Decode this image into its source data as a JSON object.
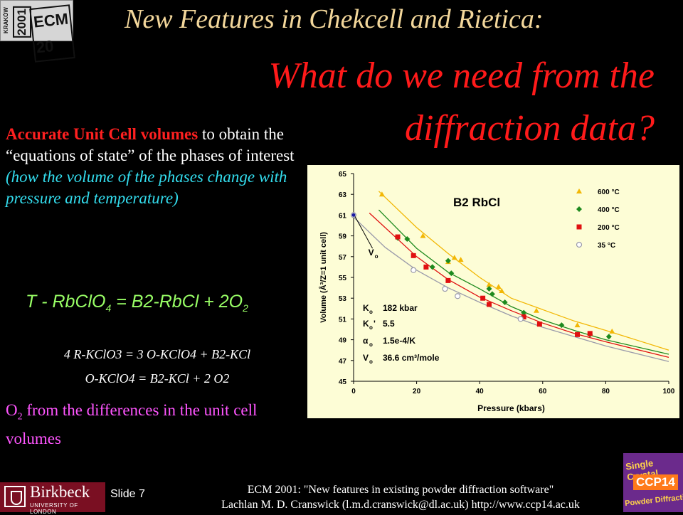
{
  "logo": {
    "city": "KRAKÓW",
    "year": "2001",
    "text": "ECM 20"
  },
  "title": {
    "line1": "New Features in Chekcell and Rietica:",
    "line2": "What do we need from the diffraction data?"
  },
  "body": {
    "lead": "Accurate Unit Cell volumes",
    "text1": " to obtain the “equations of state” of the phases of interest ",
    "italic": "(how the volume of the phases change with pressure and temperature)"
  },
  "equations": {
    "eq1_a": "T - RbClO",
    "eq1_a_sub": "4",
    "eq1_b": " = B2-RbCl + 2O",
    "eq1_b_sub": "2",
    "eq2": "4 R-KClO3  =  3 O-KClO4 + B2-KCl",
    "eq3": "O-KClO4  =  B2-KCl  + 2 O2"
  },
  "o2": {
    "a": "O",
    "sub": "2",
    "b": " from the differences in the unit cell volumes"
  },
  "footer": {
    "slide": "Slide 7",
    "line1": "ECM 2001: \"New features in existing powder diffraction software\"",
    "line2": "Lachlan M. D. Cranswick (l.m.d.cranswick@dl.ac.uk) http://www.ccp14.ac.uk"
  },
  "birkbeck": {
    "name": "Birkbeck",
    "sub": "UNIVERSITY OF LONDON"
  },
  "ccp14": {
    "line1": "Single Crystal",
    "line2": "CCP14",
    "line3": "Powder Diffraction"
  },
  "chart_data": {
    "type": "scatter",
    "title": "B2 RbCl",
    "xlabel": "Pressure (kbars)",
    "ylabel": "Volume (Å³/Z=1 unit cell)",
    "xlim": [
      0,
      100
    ],
    "ylim": [
      45,
      65
    ],
    "xticks": [
      0,
      20,
      40,
      60,
      80,
      100
    ],
    "yticks": [
      45,
      47,
      49,
      51,
      53,
      55,
      57,
      59,
      61,
      63,
      65
    ],
    "v0_label": "V",
    "v0_sub": "o",
    "params": [
      {
        "sym": "K",
        "sub": "o",
        "value": "182 kbar"
      },
      {
        "sym": "K",
        "sub": "o",
        "prime": "'",
        "value": "5.5"
      },
      {
        "sym": "α",
        "sub": "o",
        "value": "1.5e-4/K"
      },
      {
        "sym": "V",
        "sub": "o",
        "value": "36.6 cm³/mole"
      }
    ],
    "series": [
      {
        "name": "600 °C",
        "marker": "triangle",
        "color": "#f2b705",
        "curve": [
          [
            8,
            63.3
          ],
          [
            20,
            59.8
          ],
          [
            30,
            57.3
          ],
          [
            40,
            55.0
          ],
          [
            50,
            53.0
          ],
          [
            60,
            51.9
          ],
          [
            70,
            50.8
          ],
          [
            80,
            49.9
          ],
          [
            100,
            48.0
          ]
        ],
        "points": [
          [
            9,
            63.0
          ],
          [
            22,
            59.0
          ],
          [
            30,
            56.5
          ],
          [
            32,
            56.9
          ],
          [
            34,
            56.7
          ],
          [
            43,
            54.3
          ],
          [
            46,
            54.1
          ],
          [
            47,
            53.7
          ],
          [
            58,
            51.8
          ],
          [
            71,
            50.4
          ],
          [
            82,
            49.8
          ]
        ]
      },
      {
        "name": "400 °C",
        "marker": "diamond",
        "color": "#1e8a1e",
        "curve": [
          [
            8,
            61.5
          ],
          [
            20,
            57.8
          ],
          [
            30,
            55.5
          ],
          [
            40,
            53.9
          ],
          [
            50,
            52.2
          ],
          [
            60,
            50.9
          ],
          [
            70,
            49.9
          ],
          [
            80,
            49.0
          ],
          [
            100,
            47.6
          ]
        ],
        "points": [
          [
            14,
            58.8
          ],
          [
            17,
            58.7
          ],
          [
            25,
            56.0
          ],
          [
            30,
            56.6
          ],
          [
            31,
            55.4
          ],
          [
            43,
            53.9
          ],
          [
            44,
            53.4
          ],
          [
            48,
            52.6
          ],
          [
            54,
            51.6
          ],
          [
            66,
            50.4
          ],
          [
            75,
            49.5
          ],
          [
            81,
            49.3
          ]
        ]
      },
      {
        "name": "200 °C",
        "marker": "square",
        "color": "#e01010",
        "curve": [
          [
            5,
            61.2
          ],
          [
            20,
            57.0
          ],
          [
            30,
            54.8
          ],
          [
            40,
            53.1
          ],
          [
            50,
            51.8
          ],
          [
            60,
            50.6
          ],
          [
            70,
            49.6
          ],
          [
            80,
            48.8
          ],
          [
            100,
            47.3
          ]
        ],
        "points": [
          [
            14,
            58.9
          ],
          [
            19,
            57.1
          ],
          [
            23,
            56.0
          ],
          [
            30,
            54.7
          ],
          [
            41,
            53.0
          ],
          [
            43,
            52.4
          ],
          [
            54,
            51.2
          ],
          [
            59,
            50.5
          ],
          [
            71,
            49.5
          ],
          [
            75,
            49.6
          ]
        ]
      },
      {
        "name": "35 °C",
        "marker": "circle",
        "color": "#9a9aaa",
        "curve": [
          [
            0,
            60.8
          ],
          [
            10,
            57.9
          ],
          [
            20,
            55.7
          ],
          [
            30,
            54.0
          ],
          [
            40,
            52.6
          ],
          [
            50,
            51.3
          ],
          [
            60,
            50.2
          ],
          [
            70,
            49.3
          ],
          [
            80,
            48.4
          ],
          [
            100,
            46.9
          ]
        ],
        "points": [
          [
            0,
            61.0
          ],
          [
            19,
            55.7
          ],
          [
            29,
            53.9
          ],
          [
            33,
            53.2
          ],
          [
            53,
            51.0
          ]
        ]
      }
    ]
  }
}
